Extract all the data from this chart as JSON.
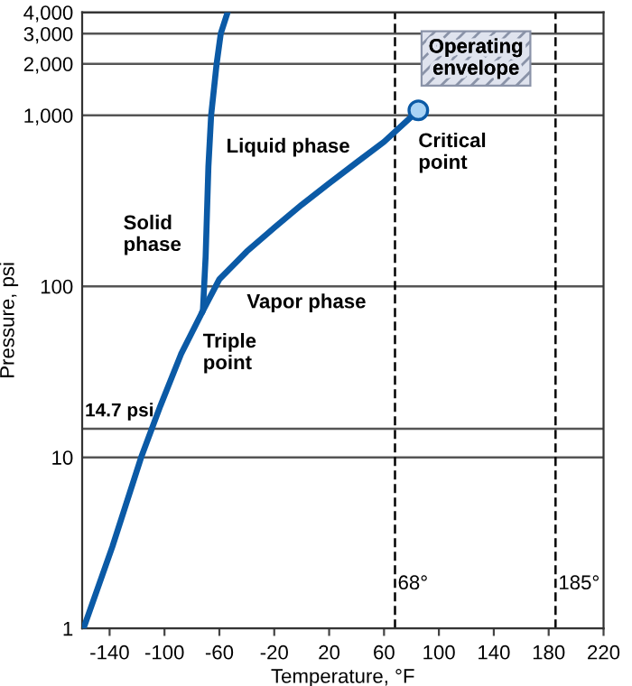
{
  "chart_data": {
    "type": "line",
    "xlabel": "Temperature, °F",
    "ylabel": "Pressure, psi",
    "xlim": [
      -160,
      220
    ],
    "ylim": [
      1,
      4000
    ],
    "log": "y",
    "xticks": [
      -140,
      -100,
      -60,
      -20,
      20,
      60,
      100,
      140,
      180,
      220
    ],
    "yticks": [
      1,
      10,
      100,
      {
        "value": 1000,
        "label": "1,000"
      },
      {
        "value": 2000,
        "label": "2,000"
      },
      {
        "value": 3000,
        "label": "3,000"
      },
      {
        "value": 4000,
        "label": "4,000"
      }
    ],
    "grid": "y",
    "line_style": "solid",
    "marker": "none",
    "series": [
      {
        "color": "#0b5aa6",
        "x": [
          -159,
          -138,
          -117,
          -103,
          -88,
          -72,
          -70,
          -68,
          -66,
          -62,
          -59,
          -54
        ],
        "values": [
          1,
          3,
          10,
          20,
          40,
          72,
          150,
          500,
          1000,
          2000,
          3000,
          4000
        ]
      },
      {
        "color": "#0b5aa6",
        "x": [
          -72,
          -60,
          -40,
          -20,
          0,
          20,
          40,
          60,
          85
        ],
        "values": [
          72,
          110,
          160,
          220,
          300,
          400,
          530,
          700,
          1070
        ]
      },
      {
        "type": "scatter",
        "color": "#a9d3f5",
        "marker": "circle",
        "x": [
          85
        ],
        "values": [
          1070
        ]
      }
    ],
    "ref_lines": [
      {
        "axis": "x",
        "value": 68,
        "label": "68°",
        "color": "#000000",
        "line_style": "dashed"
      },
      {
        "axis": "x",
        "value": 185,
        "label": "185°",
        "color": "#000000",
        "line_style": "dashed"
      },
      {
        "axis": "y",
        "value": 14.7,
        "label": "14.7 psi",
        "color": "#555555",
        "line_style": "solid"
      }
    ],
    "annotations": [
      "Liquid phase",
      "Solid\nphase",
      "Vapor phase",
      {
        "text": "Triple\npoint",
        "x": -72,
        "y": 72
      },
      {
        "text": "Critical\npoint",
        "x": 85,
        "y": 1070
      },
      "Operating\nenvelope"
    ]
  }
}
